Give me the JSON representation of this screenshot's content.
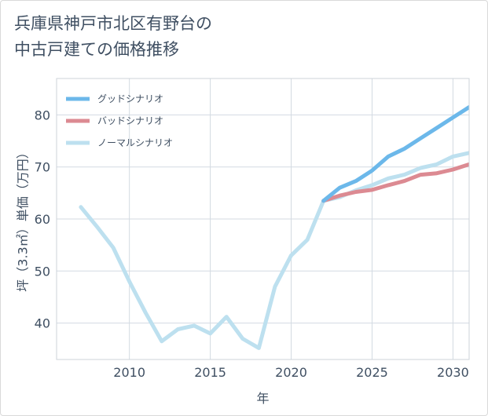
{
  "title": {
    "line1": "兵庫県神戸市北区有野台の",
    "line2": "中古戸建ての価格推移"
  },
  "chart_data": {
    "type": "line",
    "xlabel": "年",
    "ylabel": "坪（3.3㎡）単価（万円）",
    "xlim": [
      2005.5,
      2031
    ],
    "ylim": [
      33,
      87
    ],
    "xticks": [
      2010,
      2015,
      2020,
      2025,
      2030
    ],
    "yticks": [
      40,
      50,
      60,
      70,
      80
    ],
    "xtick_labels": [
      "2010",
      "2015",
      "2020",
      "2025",
      "2030"
    ],
    "ytick_labels": [
      "40",
      "50",
      "60",
      "70",
      "80"
    ],
    "legend_position": "top-left",
    "series": [
      {
        "name": "グッドシナリオ",
        "color": "#6cb8ea",
        "x": [
          2022,
          2023,
          2024,
          2025,
          2026,
          2027,
          2028,
          2029,
          2030,
          2031
        ],
        "values": [
          63.5,
          66,
          67.3,
          69.3,
          72,
          73.5,
          75.5,
          77.5,
          79.5,
          81.5
        ]
      },
      {
        "name": "バッドシナリオ",
        "color": "#dc8a92",
        "x": [
          2022,
          2023,
          2024,
          2025,
          2026,
          2027,
          2028,
          2029,
          2030,
          2031
        ],
        "values": [
          63.5,
          64.5,
          65.2,
          65.6,
          66.5,
          67.3,
          68.5,
          68.8,
          69.5,
          70.5
        ]
      },
      {
        "name": "ノーマルシナリオ",
        "color": "#bde0ef",
        "x": [
          2007,
          2008,
          2009,
          2010,
          2011,
          2012,
          2013,
          2014,
          2015,
          2016,
          2017,
          2018,
          2019,
          2020,
          2021,
          2022,
          2023,
          2024,
          2025,
          2026,
          2027,
          2028,
          2029,
          2030,
          2031
        ],
        "values": [
          62.3,
          58.5,
          54.5,
          48,
          42,
          36.5,
          38.8,
          39.5,
          38,
          41.2,
          37,
          35.2,
          47,
          53,
          56,
          63.5,
          64.2,
          65.5,
          66.5,
          67.8,
          68.5,
          69.8,
          70.5,
          72,
          72.7
        ]
      }
    ]
  }
}
